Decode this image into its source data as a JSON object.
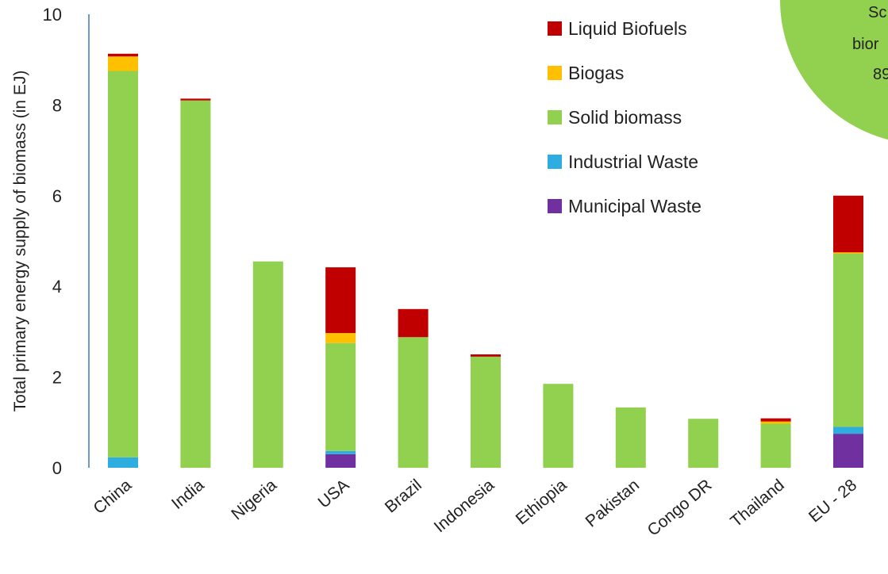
{
  "chart_data": {
    "type": "bar",
    "stacked": true,
    "title": "",
    "xlabel": "",
    "ylabel": "Total primary energy supply of biomass (in EJ)",
    "ylim": [
      0,
      10
    ],
    "yticks": [
      "0",
      "2",
      "4",
      "6",
      "8",
      "10"
    ],
    "grid": false,
    "legend_position": "top-right",
    "categories": [
      "China",
      "India",
      "Nigeria",
      "USA",
      "Brazil",
      "Indonesia",
      "Ethiopia",
      "Pakistan",
      "Congo DR",
      "Thailand",
      "EU - 28"
    ],
    "series": [
      {
        "name": "Municipal Waste",
        "color": "#7030a0",
        "values": [
          0,
          0,
          0,
          0.3,
          0,
          0,
          0,
          0,
          0,
          0,
          0.75
        ]
      },
      {
        "name": "Industrial Waste",
        "color": "#2eaee0",
        "values": [
          0.23,
          0,
          0,
          0.07,
          0,
          0,
          0,
          0,
          0,
          0,
          0.15
        ]
      },
      {
        "name": "Solid biomass",
        "color": "#92d050",
        "values": [
          8.52,
          8.1,
          4.55,
          2.38,
          2.88,
          2.45,
          1.85,
          1.33,
          1.08,
          0.97,
          3.82
        ]
      },
      {
        "name": "Biogas",
        "color": "#ffc000",
        "values": [
          0.32,
          0,
          0,
          0.22,
          0,
          0,
          0,
          0,
          0,
          0.05,
          0.03
        ]
      },
      {
        "name": "Liquid Biofuels",
        "color": "#c00000",
        "values": [
          0.06,
          0.04,
          0,
          1.45,
          0.62,
          0.05,
          0,
          0,
          0,
          0.07,
          1.25
        ]
      }
    ],
    "legend_order": [
      "Liquid Biofuels",
      "Biogas",
      "Solid biomass",
      "Industrial Waste",
      "Municipal Waste"
    ],
    "inset_fragment": {
      "color": "#92d050",
      "text_lines": [
        "Sc",
        "bior",
        "89"
      ]
    }
  }
}
